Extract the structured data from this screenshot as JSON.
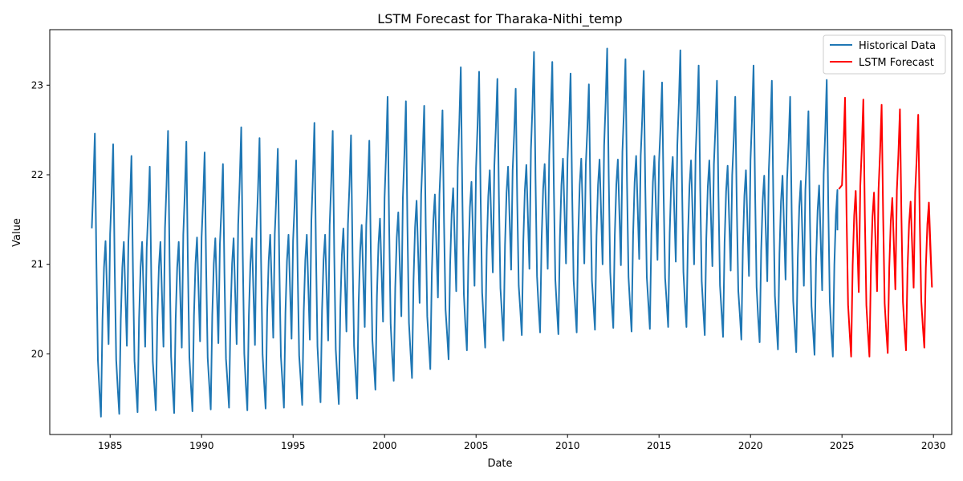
{
  "chart_data": {
    "type": "line",
    "title": "LSTM Forecast for Tharaka-Nithi_temp",
    "xlabel": "Date",
    "ylabel": "Value",
    "xlim": [
      1981.7,
      2031.0
    ],
    "ylim": [
      19.1,
      23.62
    ],
    "x_ticks": [
      1985,
      1990,
      1995,
      2000,
      2005,
      2010,
      2015,
      2020,
      2025,
      2030
    ],
    "y_ticks": [
      20,
      21,
      22,
      23
    ],
    "grid": false,
    "legend_position": "top-right",
    "series": [
      {
        "name": "Historical Data",
        "color": "#1f77b4",
        "years": [
          1984,
          1985,
          1986,
          1987,
          1988,
          1989,
          1990,
          1991,
          1992,
          1993,
          1994,
          1995,
          1996,
          1997,
          1998,
          1999,
          2000,
          2001,
          2002,
          2003,
          2004,
          2005,
          2006,
          2007,
          2008,
          2009,
          2010,
          2011,
          2012,
          2013,
          2014,
          2015,
          2016,
          2017,
          2018,
          2019,
          2020,
          2021,
          2022,
          2023,
          2024
        ],
        "peak_high": [
          22.46,
          22.34,
          22.21,
          22.09,
          22.49,
          22.37,
          22.25,
          22.12,
          22.53,
          22.41,
          22.29,
          22.16,
          22.58,
          22.49,
          22.44,
          22.38,
          22.87,
          22.82,
          22.77,
          22.72,
          23.2,
          23.15,
          23.07,
          22.96,
          23.37,
          23.26,
          23.13,
          23.01,
          23.41,
          23.29,
          23.16,
          23.03,
          23.39,
          23.22,
          23.05,
          22.87,
          23.22,
          23.05,
          22.87,
          22.71,
          23.06
        ],
        "peak_low": [
          21.26,
          21.25,
          21.25,
          21.25,
          21.25,
          21.3,
          21.29,
          21.29,
          21.29,
          21.33,
          21.33,
          21.33,
          21.33,
          21.4,
          21.44,
          21.51,
          21.58,
          21.71,
          21.78,
          21.85,
          21.92,
          22.05,
          22.09,
          22.11,
          22.12,
          22.18,
          22.18,
          22.17,
          22.17,
          22.21,
          22.21,
          22.2,
          22.16,
          22.16,
          22.1,
          22.05,
          21.99,
          21.99,
          21.93,
          21.88,
          21.83
        ],
        "trough_main": [
          19.3,
          19.33,
          19.35,
          19.37,
          19.34,
          19.36,
          19.38,
          19.4,
          19.37,
          19.39,
          19.4,
          19.43,
          19.46,
          19.44,
          19.5,
          19.6,
          19.7,
          19.73,
          19.83,
          19.94,
          20.04,
          20.07,
          20.15,
          20.21,
          20.24,
          20.22,
          20.24,
          20.27,
          20.29,
          20.25,
          20.28,
          20.3,
          20.3,
          20.21,
          20.19,
          20.16,
          20.13,
          20.05,
          20.02,
          19.99,
          19.97
        ],
        "trough_mid": [
          20.11,
          20.09,
          20.08,
          20.08,
          20.07,
          20.14,
          20.12,
          20.11,
          20.1,
          20.18,
          20.17,
          20.16,
          20.15,
          20.25,
          20.3,
          20.36,
          20.42,
          20.57,
          20.63,
          20.7,
          20.76,
          20.91,
          20.94,
          20.95,
          20.95,
          21.01,
          21.01,
          21.0,
          20.99,
          21.06,
          21.05,
          21.03,
          21.0,
          20.98,
          20.93,
          20.87,
          20.81,
          20.83,
          20.76,
          20.71,
          20.65
        ],
        "final_point": [
          2024.75,
          21.38
        ]
      },
      {
        "name": "LSTM Forecast",
        "color": "#ff0000",
        "years": [
          2025,
          2026,
          2027,
          2028,
          2029
        ],
        "peak_high": [
          22.86,
          22.84,
          22.78,
          22.73,
          22.67
        ],
        "peak_low": [
          21.82,
          21.8,
          21.74,
          21.7,
          21.69
        ],
        "trough_main": [
          19.97,
          19.97,
          20.01,
          20.04,
          20.07
        ],
        "trough_mid": [
          20.69,
          20.7,
          20.72,
          20.74,
          20.75
        ],
        "start_point": [
          2024.83,
          21.84
        ],
        "final_point": [
          2029.75,
          21.53
        ]
      }
    ]
  }
}
